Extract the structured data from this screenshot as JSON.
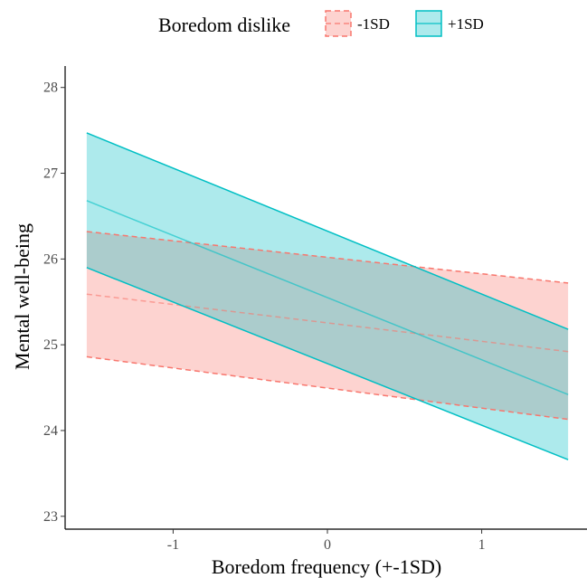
{
  "chart_data": {
    "type": "line",
    "xlabel": "Boredom frequency (+-1SD)",
    "ylabel": "Mental well-being",
    "xlim": [
      -1.7,
      1.7
    ],
    "ylim": [
      22.85,
      28.25
    ],
    "x_ticks": [
      -1,
      0,
      1
    ],
    "x_tick_labels": [
      "-1",
      "0",
      "1"
    ],
    "y_ticks": [
      23,
      24,
      25,
      26,
      27,
      28
    ],
    "y_tick_labels": [
      "23",
      "24",
      "25",
      "26",
      "27",
      "28"
    ],
    "grid": false,
    "legend": {
      "title": "Boredom dislike",
      "position": "top"
    },
    "series": [
      {
        "name": "-1SD",
        "color": "#F8766D",
        "line_style": "dashed",
        "x": [
          -1.56,
          1.56
        ],
        "fit": [
          25.59,
          24.92
        ],
        "lower": [
          24.86,
          24.13
        ],
        "upper": [
          26.32,
          25.72
        ]
      },
      {
        "name": "+1SD",
        "color": "#00BFC4",
        "line_style": "solid",
        "x": [
          -1.56,
          1.56
        ],
        "fit": [
          26.68,
          24.42
        ],
        "lower": [
          25.9,
          23.66
        ],
        "upper": [
          27.47,
          25.18
        ]
      }
    ]
  }
}
